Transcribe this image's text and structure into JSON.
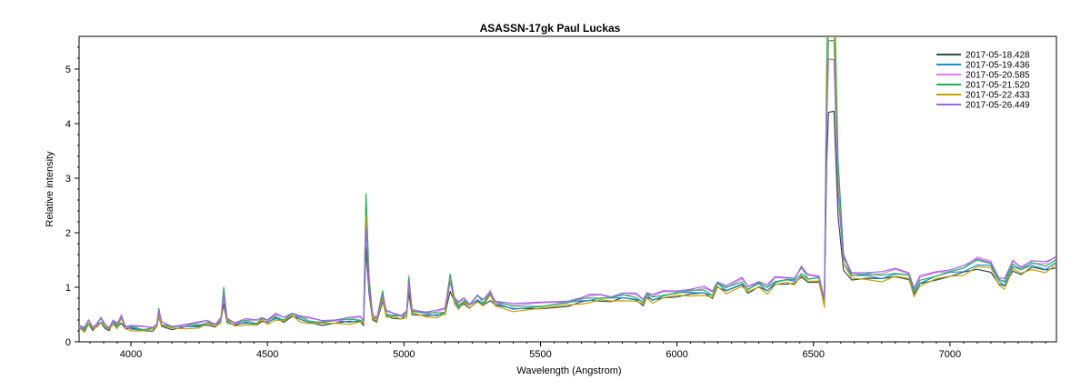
{
  "chart_data": {
    "type": "line",
    "title": "ASASSN-17gk   Paul Luckas",
    "xlabel": "Wavelength (Angstrom)",
    "ylabel": "Relative intensity",
    "xlim": [
      3810,
      7390
    ],
    "ylim": [
      0,
      5.6
    ],
    "xticks": [
      4000,
      4500,
      5000,
      5500,
      6000,
      6500,
      7000
    ],
    "yticks": [
      0,
      1,
      2,
      3,
      4,
      5
    ],
    "grid": false,
    "legend_position": "top-right",
    "base_spectrum": [
      [
        3810,
        0.28
      ],
      [
        3830,
        0.22
      ],
      [
        3845,
        0.35
      ],
      [
        3860,
        0.25
      ],
      [
        3875,
        0.3
      ],
      [
        3890,
        0.4
      ],
      [
        3905,
        0.28
      ],
      [
        3920,
        0.24
      ],
      [
        3935,
        0.36
      ],
      [
        3950,
        0.28
      ],
      [
        3965,
        0.45
      ],
      [
        3980,
        0.26
      ],
      [
        4000,
        0.25
      ],
      [
        4040,
        0.23
      ],
      [
        4080,
        0.24
      ],
      [
        4095,
        0.3
      ],
      [
        4102,
        0.55
      ],
      [
        4112,
        0.32
      ],
      [
        4150,
        0.26
      ],
      [
        4200,
        0.28
      ],
      [
        4250,
        0.3
      ],
      [
        4280,
        0.35
      ],
      [
        4310,
        0.3
      ],
      [
        4330,
        0.4
      ],
      [
        4340,
        0.9
      ],
      [
        4352,
        0.4
      ],
      [
        4380,
        0.32
      ],
      [
        4420,
        0.36
      ],
      [
        4460,
        0.34
      ],
      [
        4480,
        0.42
      ],
      [
        4500,
        0.36
      ],
      [
        4530,
        0.45
      ],
      [
        4560,
        0.4
      ],
      [
        4590,
        0.5
      ],
      [
        4620,
        0.42
      ],
      [
        4650,
        0.38
      ],
      [
        4700,
        0.35
      ],
      [
        4750,
        0.37
      ],
      [
        4800,
        0.38
      ],
      [
        4840,
        0.4
      ],
      [
        4852,
        0.35
      ],
      [
        4861,
        2.4
      ],
      [
        4872,
        1.1
      ],
      [
        4885,
        0.45
      ],
      [
        4900,
        0.4
      ],
      [
        4922,
        0.85
      ],
      [
        4935,
        0.5
      ],
      [
        4960,
        0.48
      ],
      [
        4990,
        0.45
      ],
      [
        5010,
        0.5
      ],
      [
        5018,
        1.1
      ],
      [
        5030,
        0.55
      ],
      [
        5080,
        0.5
      ],
      [
        5120,
        0.5
      ],
      [
        5150,
        0.55
      ],
      [
        5169,
        1.15
      ],
      [
        5185,
        0.75
      ],
      [
        5200,
        0.65
      ],
      [
        5220,
        0.75
      ],
      [
        5240,
        0.65
      ],
      [
        5270,
        0.8
      ],
      [
        5290,
        0.7
      ],
      [
        5316,
        0.88
      ],
      [
        5335,
        0.7
      ],
      [
        5400,
        0.62
      ],
      [
        5500,
        0.65
      ],
      [
        5600,
        0.7
      ],
      [
        5650,
        0.75
      ],
      [
        5680,
        0.78
      ],
      [
        5720,
        0.8
      ],
      [
        5760,
        0.78
      ],
      [
        5800,
        0.82
      ],
      [
        5850,
        0.8
      ],
      [
        5876,
        0.72
      ],
      [
        5890,
        0.85
      ],
      [
        5910,
        0.78
      ],
      [
        5950,
        0.85
      ],
      [
        6000,
        0.88
      ],
      [
        6050,
        0.9
      ],
      [
        6100,
        0.92
      ],
      [
        6130,
        0.85
      ],
      [
        6148,
        1.05
      ],
      [
        6180,
        0.95
      ],
      [
        6238,
        1.08
      ],
      [
        6260,
        0.95
      ],
      [
        6300,
        1.05
      ],
      [
        6330,
        0.95
      ],
      [
        6360,
        1.1
      ],
      [
        6400,
        1.12
      ],
      [
        6430,
        1.1
      ],
      [
        6456,
        1.3
      ],
      [
        6480,
        1.15
      ],
      [
        6520,
        1.15
      ],
      [
        6540,
        0.7
      ],
      [
        6548,
        4.5
      ],
      [
        6555,
        6.0
      ],
      [
        6575,
        6.0
      ],
      [
        6590,
        3.0
      ],
      [
        6610,
        1.5
      ],
      [
        6640,
        1.2
      ],
      [
        6700,
        1.2
      ],
      [
        6750,
        1.18
      ],
      [
        6800,
        1.25
      ],
      [
        6850,
        1.2
      ],
      [
        6868,
        0.9
      ],
      [
        6890,
        1.1
      ],
      [
        6950,
        1.2
      ],
      [
        7000,
        1.25
      ],
      [
        7050,
        1.3
      ],
      [
        7100,
        1.45
      ],
      [
        7150,
        1.4
      ],
      [
        7180,
        1.1
      ],
      [
        7200,
        1.05
      ],
      [
        7230,
        1.4
      ],
      [
        7260,
        1.3
      ],
      [
        7300,
        1.4
      ],
      [
        7350,
        1.35
      ],
      [
        7390,
        1.48
      ]
    ],
    "series": [
      {
        "name": "2017-05-18.428",
        "color": "#2f4f4f",
        "line_scale": 0.65,
        "cont_offset": -0.03
      },
      {
        "name": "2017-05-19.436",
        "color": "#1f8fd8",
        "line_scale": 0.9,
        "cont_offset": 0.0
      },
      {
        "name": "2017-05-20.585",
        "color": "#e57be6",
        "line_scale": 1.1,
        "cont_offset": 0.04
      },
      {
        "name": "2017-05-21.520",
        "color": "#21b357",
        "line_scale": 1.15,
        "cont_offset": 0.02
      },
      {
        "name": "2017-05-22.433",
        "color": "#c8a000",
        "line_scale": 0.98,
        "cont_offset": -0.04
      },
      {
        "name": "2017-05-26.449",
        "color": "#9966e8",
        "line_scale": 0.82,
        "cont_offset": 0.06
      }
    ]
  }
}
